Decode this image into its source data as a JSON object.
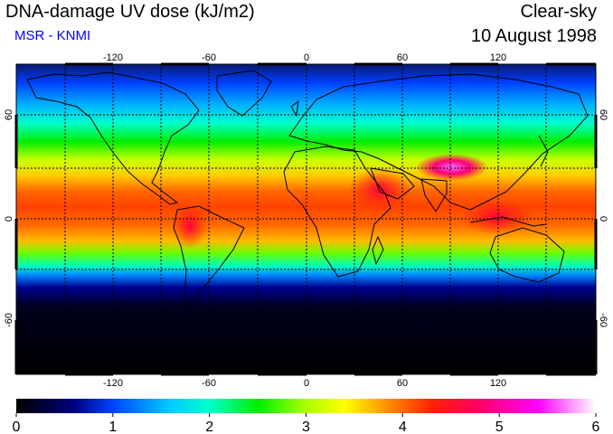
{
  "header": {
    "title": "DNA-damage UV dose (kJ/m2)",
    "subtitle": "MSR - KNMI",
    "sky": "Clear-sky",
    "date": "10 August 1998"
  },
  "map": {
    "lon_ticks": [
      "-120",
      "-60",
      "0",
      "60",
      "120"
    ],
    "lat_ticks": [
      "60",
      "0",
      "-60"
    ]
  },
  "colorbar": {
    "labels": [
      "0",
      "1",
      "2",
      "3",
      "4",
      "5",
      "6"
    ],
    "min": 0,
    "max": 6,
    "stops": [
      {
        "v": 0.0,
        "c": "#000000"
      },
      {
        "v": 0.6,
        "c": "#000080"
      },
      {
        "v": 1.0,
        "c": "#0044ff"
      },
      {
        "v": 1.6,
        "c": "#00ccff"
      },
      {
        "v": 2.0,
        "c": "#00ffcc"
      },
      {
        "v": 2.5,
        "c": "#00ee00"
      },
      {
        "v": 3.0,
        "c": "#aaff00"
      },
      {
        "v": 3.4,
        "c": "#ffff00"
      },
      {
        "v": 3.8,
        "c": "#ff9900"
      },
      {
        "v": 4.3,
        "c": "#ff2200"
      },
      {
        "v": 4.8,
        "c": "#ff0066"
      },
      {
        "v": 5.4,
        "c": "#ff00ff"
      },
      {
        "v": 6.0,
        "c": "#ffffff"
      }
    ]
  },
  "colors": {
    "subtitle": "#0000ff",
    "border": "#000000"
  }
}
